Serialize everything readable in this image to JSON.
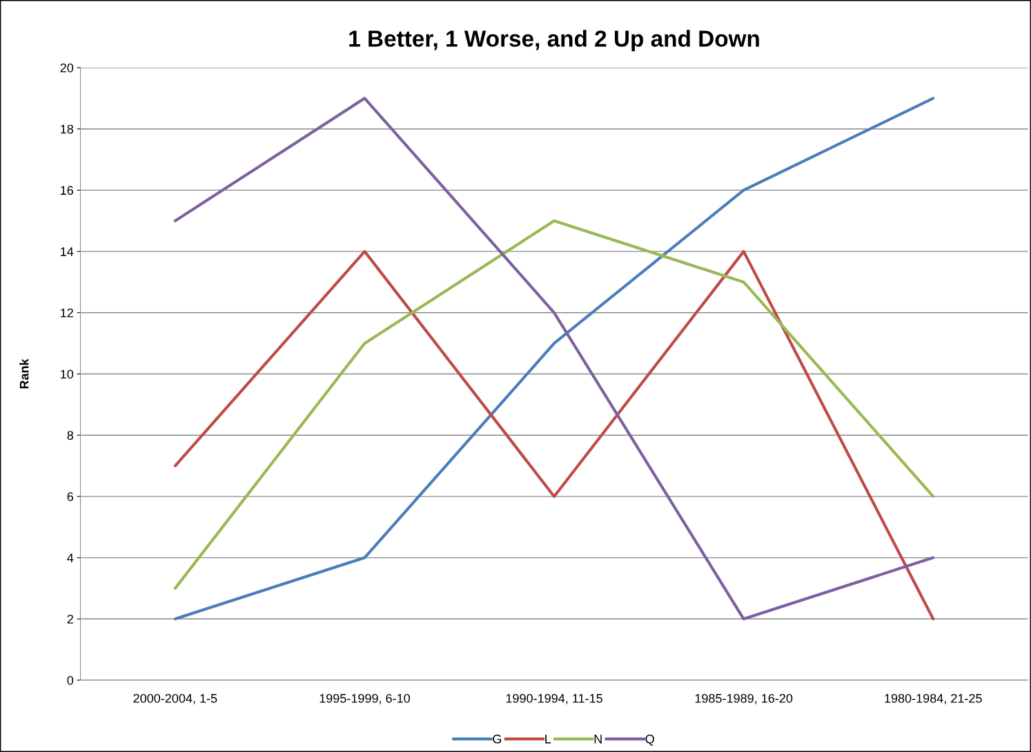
{
  "chart_data": {
    "type": "line",
    "title": "1 Better, 1 Worse, and 2 Up and Down",
    "ylabel": "Rank",
    "categories": [
      "2000-2004, 1-5",
      "1995-1999, 6-10",
      "1990-1994, 11-15",
      "1985-1989, 16-20",
      "1980-1984, 21-25"
    ],
    "series": [
      {
        "name": "G",
        "color": "#4a7ebb",
        "values": [
          2,
          4,
          11,
          16,
          19
        ]
      },
      {
        "name": "L",
        "color": "#be4b48",
        "values": [
          7,
          14,
          6,
          14,
          2
        ]
      },
      {
        "name": "N",
        "color": "#98b954",
        "values": [
          3,
          11,
          15,
          13,
          6
        ]
      },
      {
        "name": "Q",
        "color": "#7d60a0",
        "values": [
          15,
          19,
          12,
          2,
          4
        ]
      }
    ],
    "ylim": [
      0,
      20
    ],
    "yticks": [
      0,
      2,
      4,
      6,
      8,
      10,
      12,
      14,
      16,
      18,
      20
    ],
    "grid": "y",
    "legend": "bottom",
    "marker": "none",
    "line_style": "solid"
  }
}
